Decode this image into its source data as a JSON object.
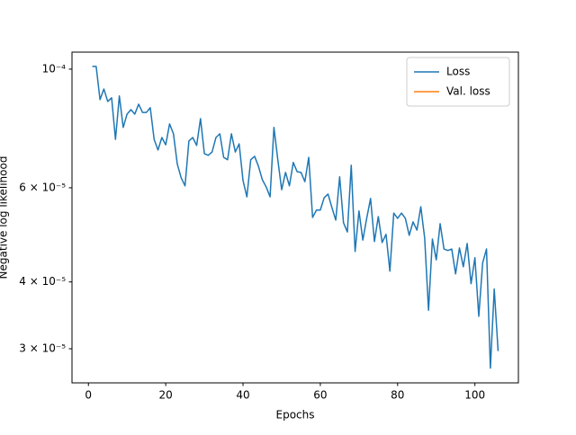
{
  "chart_data": {
    "type": "line",
    "xlabel": "Epochs",
    "ylabel": "Negative log likelihood",
    "x": [
      1,
      2,
      3,
      4,
      5,
      6,
      7,
      8,
      9,
      10,
      11,
      12,
      13,
      14,
      15,
      16,
      17,
      18,
      19,
      20,
      21,
      22,
      23,
      24,
      25,
      26,
      27,
      28,
      29,
      30,
      31,
      32,
      33,
      34,
      35,
      36,
      37,
      38,
      39,
      40,
      41,
      42,
      43,
      44,
      45,
      46,
      47,
      48,
      49,
      50,
      51,
      52,
      53,
      54,
      55,
      56,
      57,
      58,
      59,
      60,
      61,
      62,
      63,
      64,
      65,
      66,
      67,
      68,
      69,
      70,
      71,
      72,
      73,
      74,
      75,
      76,
      77,
      78,
      79,
      80,
      81,
      82,
      83,
      84,
      85,
      86,
      87,
      88,
      89,
      90,
      91,
      92,
      93,
      94,
      95,
      96,
      97,
      98,
      99,
      100,
      101,
      102,
      103,
      104,
      105,
      106
    ],
    "series": [
      {
        "name": "Loss",
        "color": "#1f77b4",
        "values": [
          0.0001012,
          0.0001012,
          8.77e-05,
          9.18e-05,
          8.7e-05,
          8.84e-05,
          7.39e-05,
          8.91e-05,
          7.78e-05,
          8.24e-05,
          8.4e-05,
          8.24e-05,
          8.6e-05,
          8.3e-05,
          8.3e-05,
          8.47e-05,
          7.39e-05,
          7.06e-05,
          7.45e-05,
          7.22e-05,
          7.9e-05,
          7.57e-05,
          6.64e-05,
          6.26e-05,
          6.05e-05,
          7.34e-05,
          7.45e-05,
          7.2e-05,
          8.08e-05,
          6.95e-05,
          6.9e-05,
          7e-05,
          7.45e-05,
          7.57e-05,
          6.84e-05,
          6.77e-05,
          7.57e-05,
          7e-05,
          7.25e-05,
          6.19e-05,
          5.77e-05,
          6.77e-05,
          6.87e-05,
          6.58e-05,
          6.21e-05,
          6.02e-05,
          5.77e-05,
          7.78e-05,
          6.77e-05,
          5.95e-05,
          6.41e-05,
          6.05e-05,
          6.69e-05,
          6.43e-05,
          6.41e-05,
          6.16e-05,
          6.84e-05,
          5.28e-05,
          5.45e-05,
          5.45e-05,
          5.75e-05,
          5.84e-05,
          5.51e-05,
          5.22e-05,
          6.29e-05,
          5.16e-05,
          4.96e-05,
          6.61e-05,
          4.56e-05,
          5.43e-05,
          4.79e-05,
          5.26e-05,
          5.73e-05,
          4.76e-05,
          5.3e-05,
          4.74e-05,
          4.91e-05,
          4.19e-05,
          5.38e-05,
          5.26e-05,
          5.38e-05,
          5.26e-05,
          4.89e-05,
          5.18e-05,
          5e-05,
          5.53e-05,
          4.83e-05,
          3.54e-05,
          4.81e-05,
          4.4e-05,
          5.14e-05,
          4.61e-05,
          4.58e-05,
          4.61e-05,
          4.14e-05,
          4.63e-05,
          4.27e-05,
          4.72e-05,
          3.97e-05,
          4.44e-05,
          3.45e-05,
          4.34e-05,
          4.61e-05,
          2.76e-05,
          3.88e-05,
          2.97e-05
        ]
      },
      {
        "name": "Val. loss",
        "color": "#ff7f0e",
        "values": [
          null,
          null,
          null,
          null,
          null,
          null,
          null,
          null,
          null,
          null,
          null,
          null,
          null,
          null,
          null,
          null,
          null,
          null,
          null,
          null,
          null,
          null,
          null,
          null,
          null,
          null,
          null,
          null,
          null,
          null,
          null,
          null,
          null,
          null,
          null,
          null,
          null,
          null,
          null,
          null,
          null,
          null,
          null,
          null,
          null,
          null,
          null,
          null,
          null,
          null,
          null,
          null,
          null,
          null,
          null,
          null,
          null,
          null,
          null,
          null,
          null,
          null,
          null,
          null,
          null,
          null,
          null,
          null,
          null,
          null,
          null,
          null,
          null,
          null,
          null,
          null,
          null,
          null,
          null,
          null,
          null,
          null,
          null,
          null,
          null,
          null,
          null,
          null,
          null,
          null,
          null,
          null,
          null,
          null,
          null,
          null,
          null,
          null,
          null,
          null,
          null,
          null,
          null,
          null,
          null,
          null
        ]
      }
    ],
    "xlim": [
      -4.25,
      111.25
    ],
    "xticks": [
      0,
      20,
      40,
      60,
      80,
      100
    ],
    "ylim": [
      2.59e-05,
      0.0001076
    ],
    "yscale": "log",
    "yticks": [
      {
        "value": 3e-05,
        "label": "3 × 10⁻⁵"
      },
      {
        "value": 4e-05,
        "label": "4 × 10⁻⁵"
      },
      {
        "value": 6e-05,
        "label": "6 × 10⁻⁵"
      },
      {
        "value": 0.0001,
        "label": "10⁻⁴"
      }
    ],
    "grid": false,
    "legend": "upper right"
  }
}
